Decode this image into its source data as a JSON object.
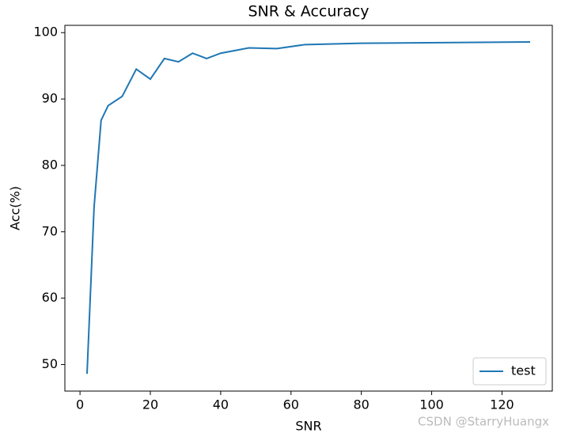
{
  "chart_data": {
    "type": "line",
    "title": "SNR & Accuracy",
    "x_label": "SNR",
    "y_label": "Acc(%)",
    "x": [
      2,
      4,
      6,
      8,
      12,
      16,
      20,
      24,
      28,
      32,
      36,
      40,
      48,
      56,
      64,
      80,
      128
    ],
    "series": [
      {
        "name": "test",
        "color": "#1f77b4",
        "values": [
          48.6,
          73.7,
          86.8,
          89.0,
          90.4,
          94.5,
          93.0,
          96.1,
          95.6,
          96.9,
          96.1,
          96.9,
          97.7,
          97.6,
          98.2,
          98.4,
          98.6
        ]
      }
    ],
    "xlim": [
      -4.3,
      134.3
    ],
    "xticks": [
      0,
      20,
      40,
      60,
      80,
      100,
      120
    ],
    "ylim": [
      46.0,
      101.1
    ],
    "yticks": [
      50,
      60,
      70,
      80,
      90,
      100
    ],
    "legend": "lower right",
    "watermark": "CSDN @StarryHuangx"
  }
}
